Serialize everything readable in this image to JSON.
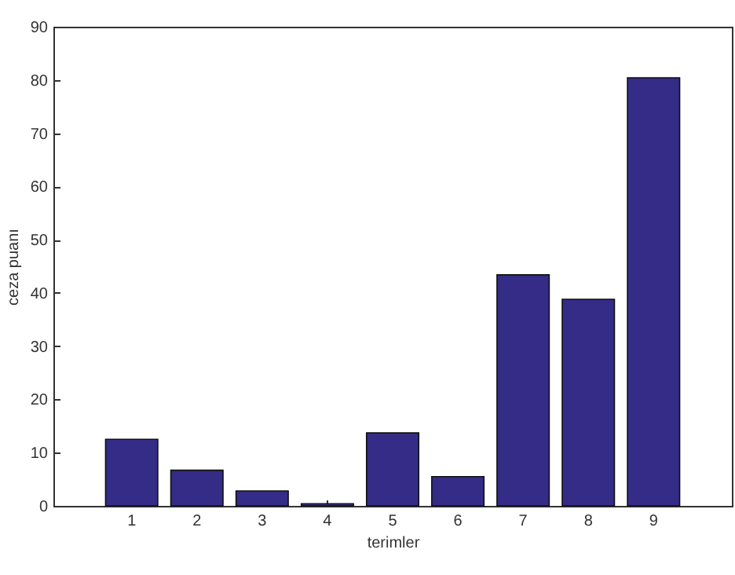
{
  "chart_data": {
    "type": "bar",
    "xlabel": "terimler",
    "ylabel": "ceza puanı",
    "categories": [
      "1",
      "2",
      "3",
      "4",
      "5",
      "6",
      "7",
      "8",
      "9"
    ],
    "values": [
      12.5,
      6.7,
      2.8,
      0.4,
      13.7,
      5.5,
      43.4,
      38.8,
      80.4
    ],
    "color": "#342c86",
    "ylim": [
      0,
      90
    ],
    "yticks": [
      0,
      10,
      20,
      30,
      40,
      50,
      60,
      70,
      80,
      90
    ],
    "grid": false
  }
}
